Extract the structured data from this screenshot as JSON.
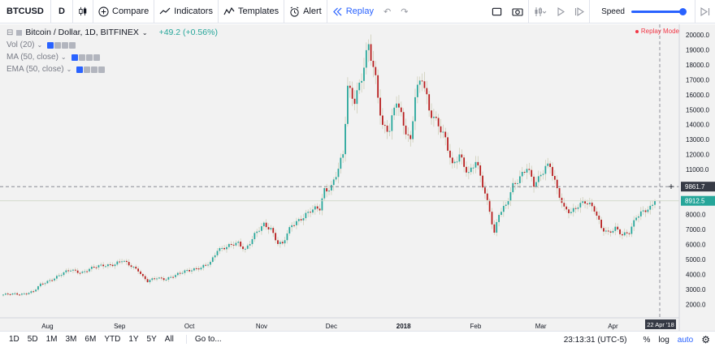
{
  "toolbar": {
    "symbol": "BTCUSD",
    "interval": "D",
    "compare": "Compare",
    "indicators": "Indicators",
    "templates": "Templates",
    "alert": "Alert",
    "replay": "Replay",
    "speed_label": "Speed",
    "speed_value": 1.0
  },
  "legend": {
    "title": "Bitcoin / Dollar, 1D, BITFINEX",
    "change": "+49.2 (+0.56%)",
    "studies": [
      "Vol (20)",
      "MA (50, close)",
      "EMA (50, close)"
    ]
  },
  "replay_mode": "Replay Mode",
  "bottombar": {
    "ranges": [
      "1D",
      "5D",
      "1M",
      "3M",
      "6M",
      "YTD",
      "1Y",
      "5Y",
      "All"
    ],
    "goto": "Go to...",
    "time": "23:13:31 (UTC-5)",
    "percent": "%",
    "log": "log",
    "auto": "auto"
  },
  "colors": {
    "up": "#26a69a",
    "down": "#b71c1c",
    "accent": "#2962ff",
    "background": "#f2f2f2"
  },
  "chart_data": {
    "type": "candlestick",
    "title": "Bitcoin / Dollar, 1D, BITFINEX",
    "price_ticks": [
      2000,
      3000,
      4000,
      5000,
      6000,
      7000,
      8000,
      9000,
      10000,
      11000,
      12000,
      13000,
      14000,
      15000,
      16000,
      17000,
      18000,
      19000,
      20000
    ],
    "price_tick_labels": [
      "2000.0",
      "3000.0",
      "4000.0",
      "5000.0",
      "6000.0",
      "7000.0",
      "8000.0",
      "9000.0",
      "10000.0",
      "11000.0",
      "12000.0",
      "13000.0",
      "14000.0",
      "15000.0",
      "16000.0",
      "17000.0",
      "18000.0",
      "19000.0",
      "20000.0"
    ],
    "ylim": [
      1100,
      20700
    ],
    "time_labels": [
      {
        "label": "Aug",
        "bold": false,
        "idx": 19
      },
      {
        "label": "Sep",
        "bold": false,
        "idx": 50
      },
      {
        "label": "Oct",
        "bold": false,
        "idx": 80
      },
      {
        "label": "Nov",
        "bold": false,
        "idx": 111
      },
      {
        "label": "Dec",
        "bold": false,
        "idx": 141
      },
      {
        "label": "2018",
        "bold": true,
        "idx": 172
      },
      {
        "label": "Feb",
        "bold": false,
        "idx": 203
      },
      {
        "label": "Mar",
        "bold": false,
        "idx": 231
      },
      {
        "label": "Apr",
        "bold": false,
        "idx": 262
      }
    ],
    "crosshair_price": "9861.7",
    "crosshair_date": "22 Apr '18",
    "last_price": "8912.5",
    "last_value": 8912.5,
    "crosshair_value": 9861.7,
    "keypoints": [
      [
        0,
        2650
      ],
      [
        8,
        2700
      ],
      [
        13,
        2850
      ],
      [
        16,
        3300
      ],
      [
        21,
        3700
      ],
      [
        25,
        4000
      ],
      [
        29,
        4300
      ],
      [
        34,
        4150
      ],
      [
        40,
        4500
      ],
      [
        43,
        4650
      ],
      [
        48,
        4650
      ],
      [
        51,
        4900
      ],
      [
        55,
        4600
      ],
      [
        58,
        4300
      ],
      [
        60,
        3800
      ],
      [
        62,
        3500
      ],
      [
        66,
        3800
      ],
      [
        70,
        3700
      ],
      [
        74,
        3900
      ],
      [
        78,
        4250
      ],
      [
        81,
        4350
      ],
      [
        85,
        4400
      ],
      [
        89,
        4800
      ],
      [
        92,
        5700
      ],
      [
        96,
        5800
      ],
      [
        101,
        6100
      ],
      [
        104,
        5700
      ],
      [
        108,
        6600
      ],
      [
        112,
        7300
      ],
      [
        115,
        7100
      ],
      [
        118,
        6100
      ],
      [
        120,
        6000
      ],
      [
        124,
        7300
      ],
      [
        128,
        7800
      ],
      [
        132,
        8200
      ],
      [
        136,
        8400
      ],
      [
        138,
        9700
      ],
      [
        141,
        9900
      ],
      [
        144,
        11000
      ],
      [
        146,
        11900
      ],
      [
        148,
        16500
      ],
      [
        151,
        15800
      ],
      [
        154,
        17200
      ],
      [
        157,
        19100
      ],
      [
        160,
        17000
      ],
      [
        163,
        14000
      ],
      [
        166,
        13700
      ],
      [
        169,
        15500
      ],
      [
        172,
        14000
      ],
      [
        175,
        13000
      ],
      [
        177,
        16100
      ],
      [
        180,
        17000
      ],
      [
        183,
        14900
      ],
      [
        187,
        14200
      ],
      [
        190,
        13000
      ],
      [
        193,
        11100
      ],
      [
        196,
        12000
      ],
      [
        200,
        10800
      ],
      [
        203,
        11500
      ],
      [
        206,
        9900
      ],
      [
        209,
        8300
      ],
      [
        211,
        6800
      ],
      [
        213,
        8100
      ],
      [
        216,
        8500
      ],
      [
        219,
        9900
      ],
      [
        222,
        10600
      ],
      [
        225,
        11200
      ],
      [
        228,
        9900
      ],
      [
        230,
        10300
      ],
      [
        233,
        11300
      ],
      [
        235,
        11400
      ],
      [
        238,
        9600
      ],
      [
        241,
        8300
      ],
      [
        244,
        8200
      ],
      [
        247,
        8700
      ],
      [
        250,
        8800
      ],
      [
        254,
        8300
      ],
      [
        257,
        7200
      ],
      [
        260,
        6800
      ],
      [
        263,
        7000
      ],
      [
        266,
        6600
      ],
      [
        269,
        6900
      ],
      [
        272,
        7900
      ],
      [
        275,
        8100
      ],
      [
        278,
        8400
      ],
      [
        280,
        8912
      ]
    ],
    "series": [
      {
        "name": "BTCUSD",
        "count": 281
      }
    ]
  }
}
